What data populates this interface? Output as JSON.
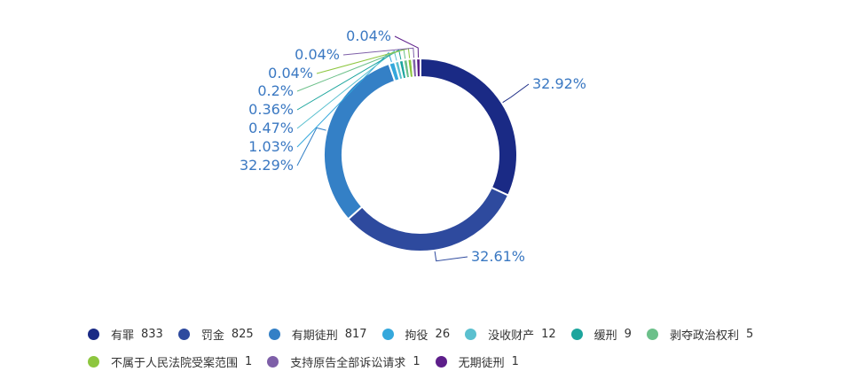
{
  "chart_data": {
    "type": "pie",
    "title": "",
    "donut": true,
    "categories": [
      "有罪",
      "罚金",
      "有期徒刑",
      "拘役",
      "没收财产",
      "缓刑",
      "剥夺政治权利",
      "不属于人民法院受案范围",
      "支持原告全部诉讼请求",
      "无期徒刑"
    ],
    "values": [
      833,
      825,
      817,
      26,
      12,
      9,
      5,
      1,
      1,
      1
    ],
    "percent_labels": [
      "32.92%",
      "32.61%",
      "32.29%",
      "1.03%",
      "0.47%",
      "0.36%",
      "0.2%",
      "0.04%",
      "0.04%",
      "0.04%"
    ],
    "colors": [
      "#1a2a85",
      "#2e4a9e",
      "#3480c6",
      "#35a8dc",
      "#5bc0cf",
      "#1ca59d",
      "#6cc08a",
      "#8dc63f",
      "#7e5fa8",
      "#5d1e8a"
    ],
    "legend_position": "bottom"
  }
}
